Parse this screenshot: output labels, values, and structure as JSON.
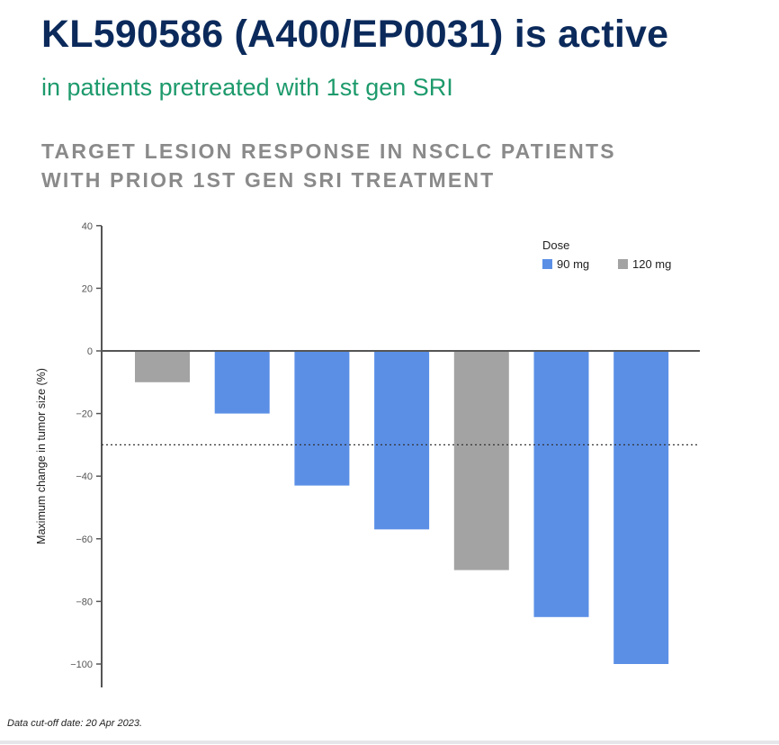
{
  "header": {
    "title": "KL590586 (A400/EP0031) is active",
    "subtitle": "in patients pretreated with 1st gen SRI"
  },
  "chart_data": {
    "type": "bar",
    "title_lines": [
      "TARGET LESION RESPONSE IN NSCLC PATIENTS",
      "WITH PRIOR 1ST GEN SRI TREATMENT"
    ],
    "xlabel": "",
    "ylabel": "Maximum change in tumor size (%)",
    "ylim": [
      -107,
      40
    ],
    "yticks": [
      40,
      20,
      0,
      -20,
      -40,
      -60,
      -80,
      -100
    ],
    "reference_line": {
      "y": -30,
      "style": "dotted"
    },
    "legend": {
      "title": "Dose",
      "placement": "top-right",
      "entries": [
        {
          "name": "90 mg",
          "color": "#5b8fe6"
        },
        {
          "name": "120 mg",
          "color": "#a3a3a3"
        }
      ]
    },
    "bars": [
      {
        "dose": "120 mg",
        "value": -10
      },
      {
        "dose": "90 mg",
        "value": -20
      },
      {
        "dose": "90 mg",
        "value": -43
      },
      {
        "dose": "90 mg",
        "value": -57
      },
      {
        "dose": "120 mg",
        "value": -70
      },
      {
        "dose": "90 mg",
        "value": -85
      },
      {
        "dose": "90 mg",
        "value": -100
      }
    ],
    "grid": false
  },
  "footer": "Data cut-off date: 20 Apr 2023."
}
